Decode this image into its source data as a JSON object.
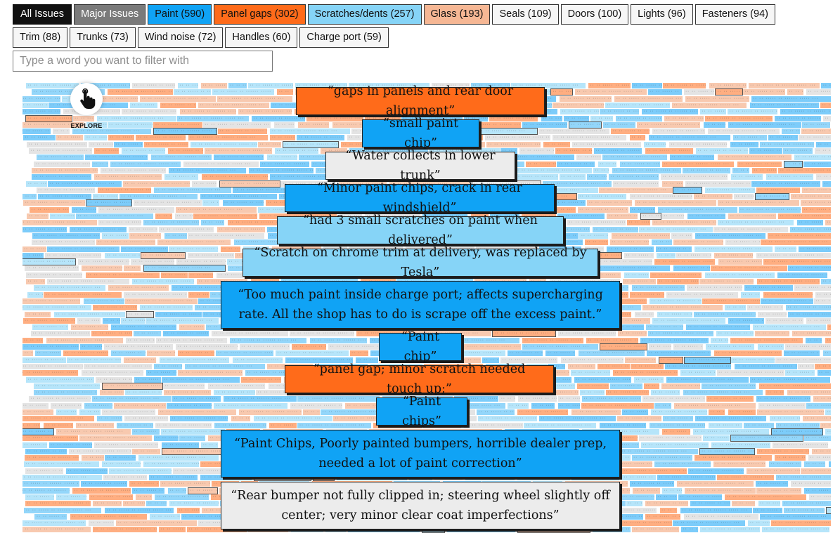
{
  "filters": [
    {
      "label": "All Issues",
      "bg": "#111111",
      "fg": "#ffffff"
    },
    {
      "label": "Major Issues",
      "bg": "#7a7a7a",
      "fg": "#ffffff"
    },
    {
      "label": "Paint (590)",
      "bg": "#10a3f5",
      "fg": "#111111"
    },
    {
      "label": "Panel gaps (302)",
      "bg": "#ff6b1a",
      "fg": "#111111"
    },
    {
      "label": "Scratches/dents (257)",
      "bg": "#86d4f7",
      "fg": "#111111"
    },
    {
      "label": "Glass (193)",
      "bg": "#f6b794",
      "fg": "#111111"
    },
    {
      "label": "Seals (109)",
      "bg": "#f6f6f6",
      "fg": "#111111"
    },
    {
      "label": "Doors (100)",
      "bg": "#f6f6f6",
      "fg": "#111111"
    },
    {
      "label": "Lights (96)",
      "bg": "#f6f6f6",
      "fg": "#111111"
    },
    {
      "label": "Fasteners (94)",
      "bg": "#f6f6f6",
      "fg": "#111111"
    },
    {
      "label": "Trim (88)",
      "bg": "#f6f6f6",
      "fg": "#111111"
    },
    {
      "label": "Trunks (73)",
      "bg": "#f6f6f6",
      "fg": "#111111"
    },
    {
      "label": "Wind noise (72)",
      "bg": "#f6f6f6",
      "fg": "#111111"
    },
    {
      "label": "Handles (60)",
      "bg": "#f6f6f6",
      "fg": "#111111"
    },
    {
      "label": "Charge port (59)",
      "bg": "#f6f6f6",
      "fg": "#111111"
    }
  ],
  "filter_input": {
    "value": "",
    "placeholder": "Type a word you want to filter with"
  },
  "explore": {
    "label": "EXPLORE",
    "icon": "hand-pointer-icon"
  },
  "quotes": [
    {
      "text": "“gaps in panels and rear door alignment”",
      "bg": "#ff6b1a"
    },
    {
      "text": "“small paint chip”",
      "bg": "#10a3f5"
    },
    {
      "text": "“Water collects in lower trunk”",
      "bg": "#ececec"
    },
    {
      "text": "“Minor paint chips, crack in rear windshield”",
      "bg": "#10a3f5"
    },
    {
      "text": "“had 3 small scratches on paint when delivered”",
      "bg": "#86d4f7"
    },
    {
      "text": "“Scratch on chrome trim at delivery, was replaced by Tesla”",
      "bg": "#86d4f7"
    },
    {
      "text": "“Too much paint inside charge port; affects supercharging rate. All the shop has to do is scrape off the excess paint.”",
      "bg": "#10a3f5"
    },
    {
      "text": "“Paint chip”",
      "bg": "#10a3f5"
    },
    {
      "text": "“panel gap; minor scratch needed touch up;”",
      "bg": "#ff6b1a"
    },
    {
      "text": "“Paint chips”",
      "bg": "#10a3f5"
    },
    {
      "text": "“Paint Chips, Poorly painted bumpers, horrible dealer prep, needed a lot of paint correction”",
      "bg": "#10a3f5"
    },
    {
      "text": "“Rear bumper not fully clipped in; steering wheel slightly off center; very minor clear coat imperfections”",
      "bg": "#ececec"
    }
  ]
}
